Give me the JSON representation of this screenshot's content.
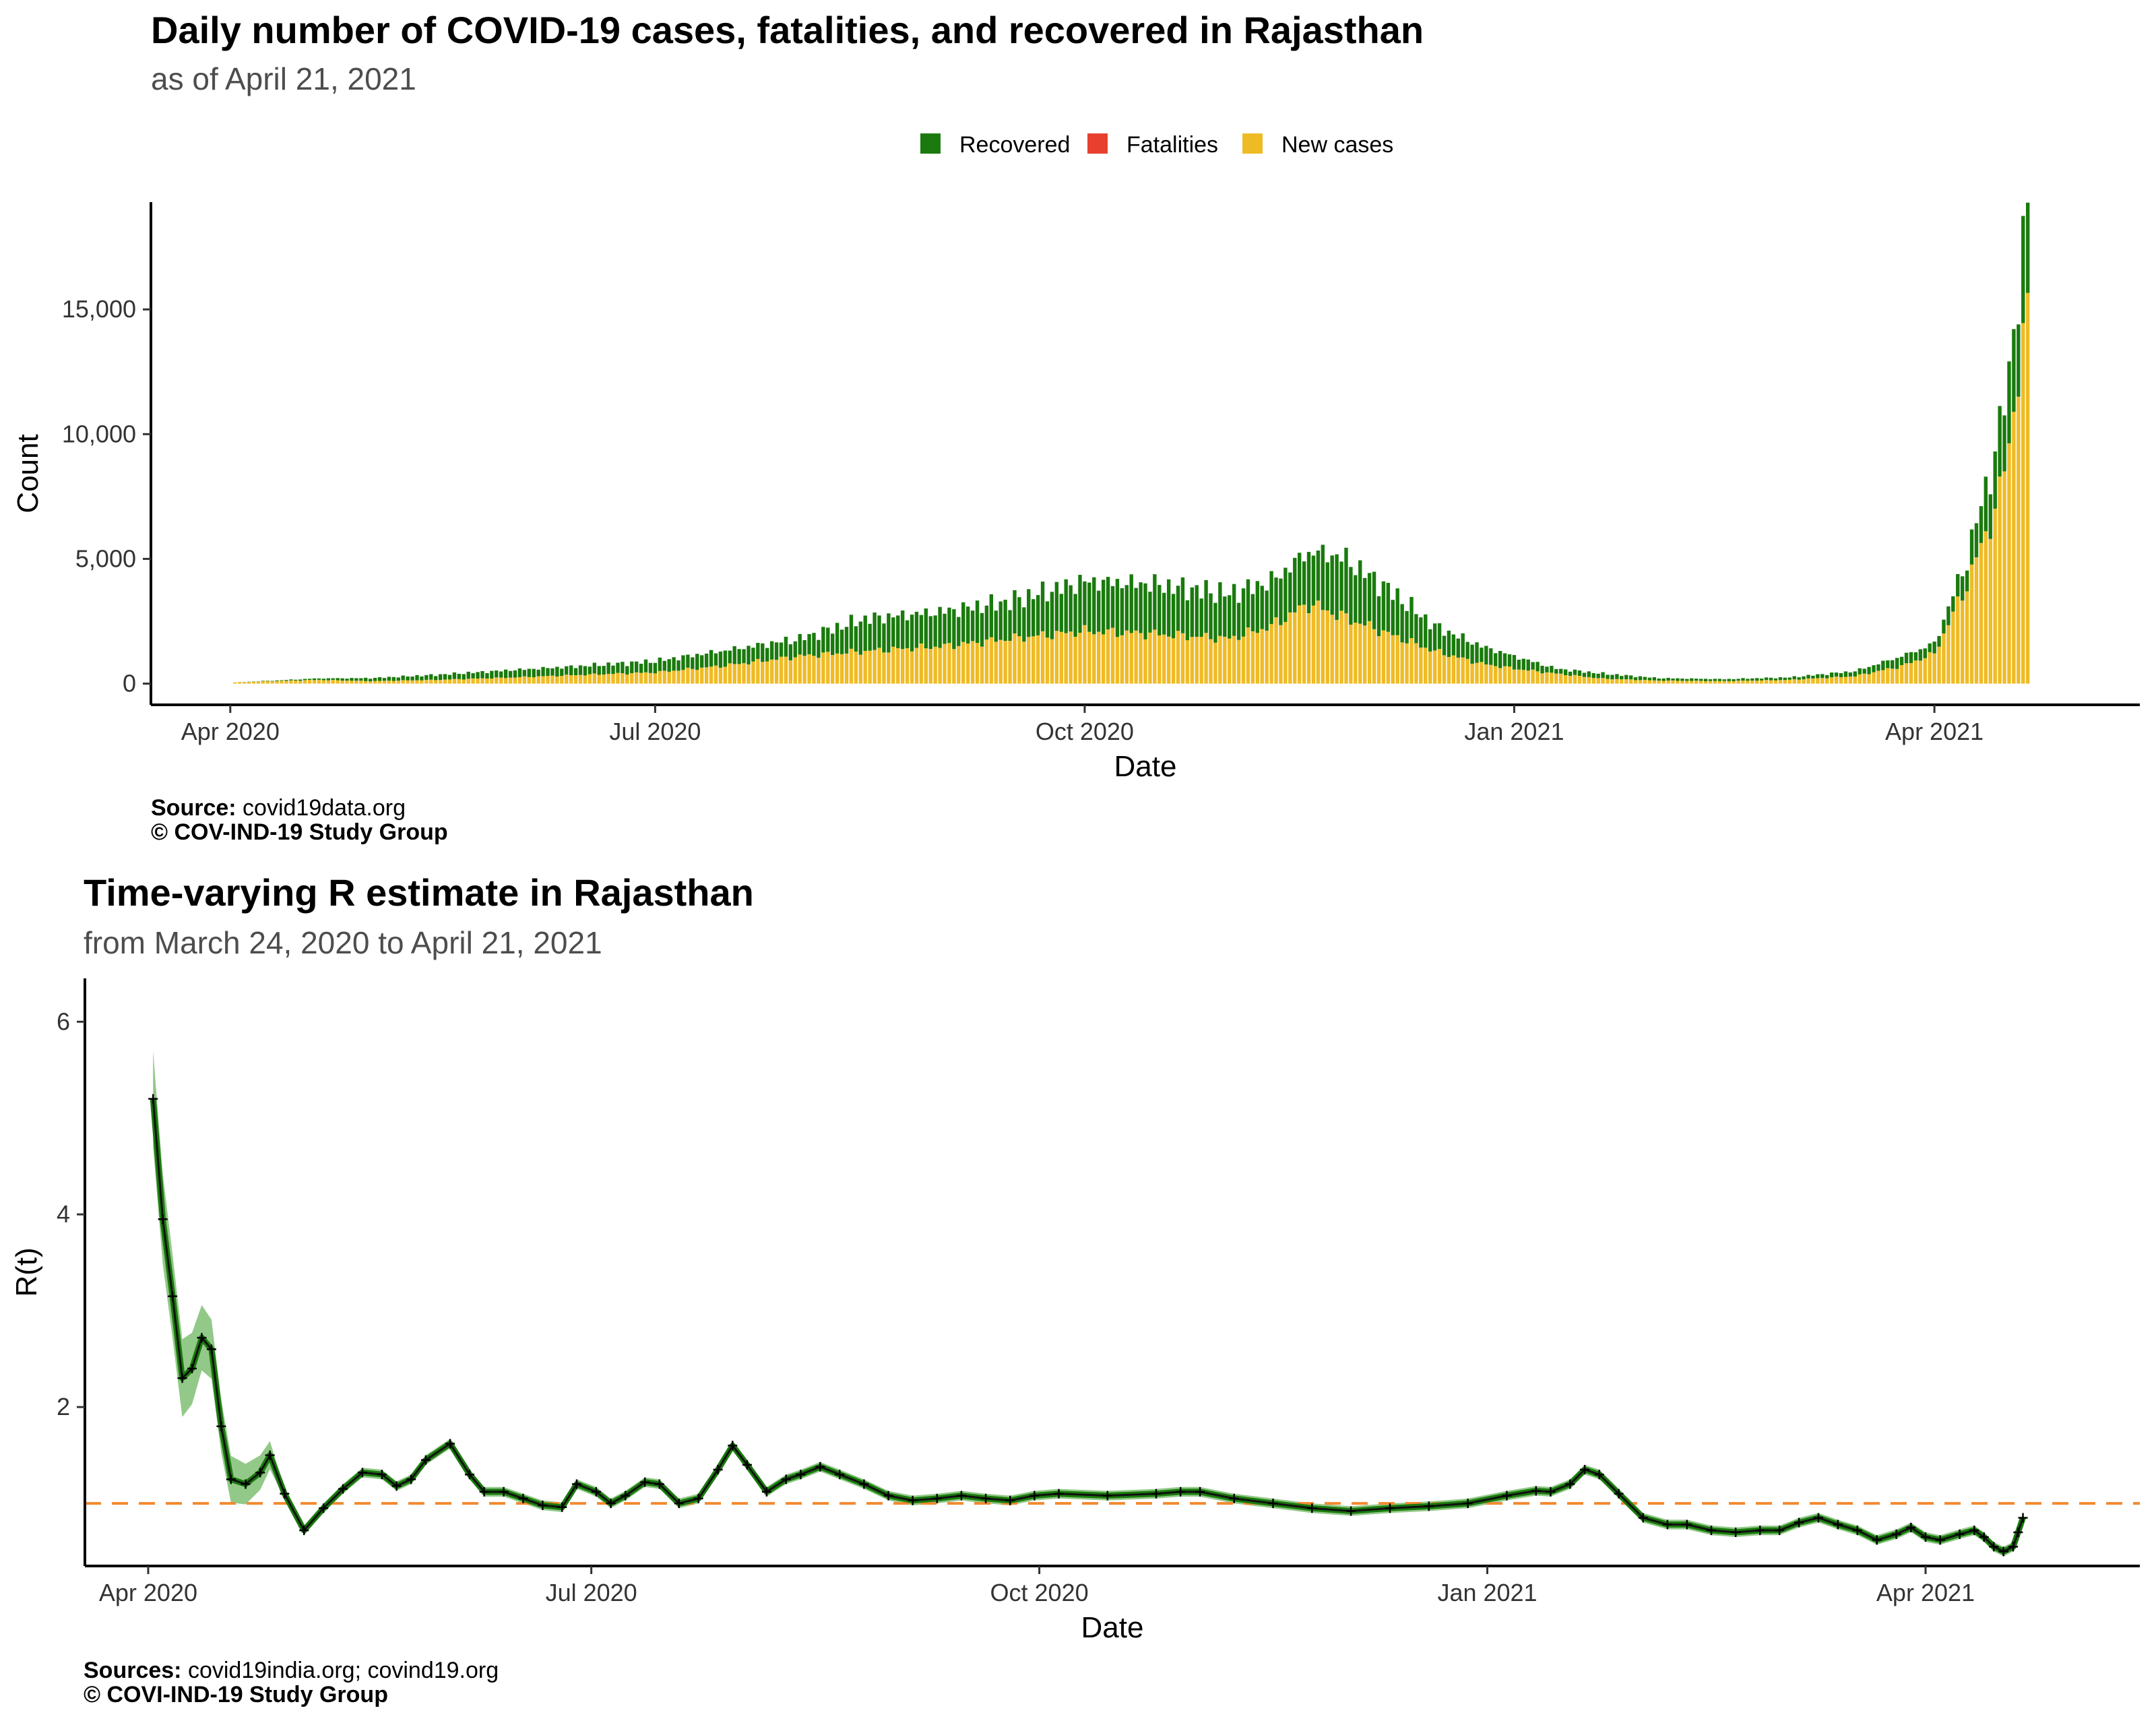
{
  "chart1": {
    "title": "Daily number of COVID-19 cases, fatalities, and recovered in Rajasthan",
    "subtitle": "as of April 21, 2021",
    "source_label": "Source:",
    "source_text": "covid19data.org",
    "copyright": "© COV-IND-19 Study Group"
  },
  "chart2": {
    "title": "Time-varying R estimate in Rajasthan",
    "subtitle": "from March 24, 2020 to April 21, 2021",
    "source_label": "Sources:",
    "source_text": "covid19india.org; covind19.org",
    "copyright": "© COVI-IND-19 Study Group"
  },
  "colors": {
    "recovered": "#1a7a0d",
    "fatalities": "#e8402f",
    "new_cases": "#efbb25",
    "r_line": "#1a7a0d",
    "r_band": "#7fbf73",
    "threshold": "#f28a30"
  },
  "chart_data": [
    {
      "type": "bar",
      "stacked": true,
      "title": "Daily number of COVID-19 cases, fatalities, and recovered in Rajasthan",
      "subtitle": "as of April 21, 2021",
      "xlabel": "Date",
      "ylabel": "Count",
      "legend": {
        "position": "top",
        "entries": [
          "Recovered",
          "Fatalities",
          "New cases"
        ]
      },
      "x_range": [
        "2020-03-15",
        "2021-05-15"
      ],
      "ylim": [
        -850,
        19300
      ],
      "x_ticks": [
        {
          "date": "2020-04-01",
          "label": "Apr 2020"
        },
        {
          "date": "2020-07-01",
          "label": "Jul 2020"
        },
        {
          "date": "2020-10-01",
          "label": "Oct 2020"
        },
        {
          "date": "2021-01-01",
          "label": "Jan 2021"
        },
        {
          "date": "2021-04-01",
          "label": "Apr 2021"
        }
      ],
      "y_ticks": [
        {
          "value": 0,
          "label": "0"
        },
        {
          "value": 5000,
          "label": "5,000"
        },
        {
          "value": 10000,
          "label": "10,000"
        },
        {
          "value": 15000,
          "label": "15,000"
        }
      ],
      "new_cases_profile": [
        [
          "2020-04-02",
          50
        ],
        [
          "2020-04-10",
          100
        ],
        [
          "2020-04-20",
          150
        ],
        [
          "2020-05-01",
          100
        ],
        [
          "2020-05-15",
          150
        ],
        [
          "2020-06-01",
          250
        ],
        [
          "2020-06-15",
          350
        ],
        [
          "2020-07-01",
          450
        ],
        [
          "2020-07-15",
          700
        ],
        [
          "2020-08-01",
          1100
        ],
        [
          "2020-08-15",
          1300
        ],
        [
          "2020-09-01",
          1500
        ],
        [
          "2020-09-15",
          1800
        ],
        [
          "2020-10-01",
          2100
        ],
        [
          "2020-10-15",
          2000
        ],
        [
          "2020-11-01",
          1800
        ],
        [
          "2020-11-10",
          2300
        ],
        [
          "2020-11-18",
          3200
        ],
        [
          "2020-11-25",
          2700
        ],
        [
          "2020-12-05",
          2000
        ],
        [
          "2020-12-15",
          1300
        ],
        [
          "2020-12-25",
          800
        ],
        [
          "2021-01-01",
          600
        ],
        [
          "2021-01-10",
          400
        ],
        [
          "2021-01-20",
          200
        ],
        [
          "2021-02-01",
          120
        ],
        [
          "2021-02-15",
          100
        ],
        [
          "2021-03-01",
          150
        ],
        [
          "2021-03-15",
          300
        ],
        [
          "2021-03-25",
          700
        ],
        [
          "2021-04-01",
          1200
        ],
        [
          "2021-04-08",
          4000
        ],
        [
          "2021-04-15",
          7500
        ],
        [
          "2021-04-21",
          14600
        ]
      ],
      "recovered_profile": [
        [
          "2020-04-02",
          0
        ],
        [
          "2020-04-10",
          20
        ],
        [
          "2020-04-20",
          60
        ],
        [
          "2020-05-01",
          120
        ],
        [
          "2020-05-15",
          200
        ],
        [
          "2020-06-01",
          300
        ],
        [
          "2020-06-15",
          350
        ],
        [
          "2020-07-01",
          450
        ],
        [
          "2020-07-15",
          600
        ],
        [
          "2020-08-01",
          700
        ],
        [
          "2020-08-15",
          1300
        ],
        [
          "2020-09-01",
          1400
        ],
        [
          "2020-09-15",
          1500
        ],
        [
          "2020-10-01",
          2000
        ],
        [
          "2020-10-15",
          2000
        ],
        [
          "2020-11-01",
          1800
        ],
        [
          "2020-11-10",
          1800
        ],
        [
          "2020-11-18",
          2100
        ],
        [
          "2020-11-25",
          2400
        ],
        [
          "2020-12-05",
          1800
        ],
        [
          "2020-12-15",
          1000
        ],
        [
          "2020-12-25",
          700
        ],
        [
          "2021-01-01",
          500
        ],
        [
          "2021-01-10",
          200
        ],
        [
          "2021-01-20",
          200
        ],
        [
          "2021-02-01",
          100
        ],
        [
          "2021-02-15",
          80
        ],
        [
          "2021-03-01",
          100
        ],
        [
          "2021-03-15",
          200
        ],
        [
          "2021-03-25",
          400
        ],
        [
          "2021-04-01",
          400
        ],
        [
          "2021-04-08",
          1000
        ],
        [
          "2021-04-15",
          2500
        ],
        [
          "2021-04-21",
          3900
        ]
      ]
    },
    {
      "type": "line",
      "title": "Time-varying R estimate in Rajasthan",
      "subtitle": "from March 24, 2020 to April 21, 2021",
      "xlabel": "Date",
      "ylabel": "R(t)",
      "x_range": [
        "2020-03-19",
        "2021-05-15"
      ],
      "ylim": [
        0.35,
        6.45
      ],
      "threshold": 1,
      "x_ticks": [
        {
          "date": "2020-04-01",
          "label": "Apr 2020"
        },
        {
          "date": "2020-07-01",
          "label": "Jul 2020"
        },
        {
          "date": "2020-10-01",
          "label": "Oct 2020"
        },
        {
          "date": "2021-01-01",
          "label": "Jan 2021"
        },
        {
          "date": "2021-04-01",
          "label": "Apr 2021"
        }
      ],
      "y_ticks": [
        {
          "value": 2,
          "label": "2"
        },
        {
          "value": 4,
          "label": "4"
        },
        {
          "value": 6,
          "label": "6"
        }
      ],
      "series": [
        {
          "points": [
            [
              "2020-04-02",
              5.2
            ],
            [
              "2020-04-04",
              3.95
            ],
            [
              "2020-04-06",
              3.15
            ],
            [
              "2020-04-08",
              2.3
            ],
            [
              "2020-04-10",
              2.4
            ],
            [
              "2020-04-12",
              2.72
            ],
            [
              "2020-04-14",
              2.6
            ],
            [
              "2020-04-16",
              1.8
            ],
            [
              "2020-04-18",
              1.25
            ],
            [
              "2020-04-21",
              1.2
            ],
            [
              "2020-04-24",
              1.32
            ],
            [
              "2020-04-26",
              1.5
            ],
            [
              "2020-04-29",
              1.1
            ],
            [
              "2020-05-03",
              0.72
            ],
            [
              "2020-05-07",
              0.95
            ],
            [
              "2020-05-11",
              1.15
            ],
            [
              "2020-05-15",
              1.32
            ],
            [
              "2020-05-19",
              1.3
            ],
            [
              "2020-05-22",
              1.18
            ],
            [
              "2020-05-25",
              1.25
            ],
            [
              "2020-05-28",
              1.45
            ],
            [
              "2020-06-02",
              1.62
            ],
            [
              "2020-06-06",
              1.3
            ],
            [
              "2020-06-09",
              1.12
            ],
            [
              "2020-06-13",
              1.12
            ],
            [
              "2020-06-17",
              1.05
            ],
            [
              "2020-06-21",
              0.98
            ],
            [
              "2020-06-25",
              0.96
            ],
            [
              "2020-06-28",
              1.2
            ],
            [
              "2020-07-02",
              1.12
            ],
            [
              "2020-07-05",
              1.0
            ],
            [
              "2020-07-08",
              1.08
            ],
            [
              "2020-07-12",
              1.22
            ],
            [
              "2020-07-15",
              1.2
            ],
            [
              "2020-07-19",
              1.0
            ],
            [
              "2020-07-23",
              1.05
            ],
            [
              "2020-07-27",
              1.35
            ],
            [
              "2020-07-30",
              1.6
            ],
            [
              "2020-08-02",
              1.4
            ],
            [
              "2020-08-06",
              1.12
            ],
            [
              "2020-08-10",
              1.25
            ],
            [
              "2020-08-13",
              1.3
            ],
            [
              "2020-08-17",
              1.38
            ],
            [
              "2020-08-21",
              1.3
            ],
            [
              "2020-08-26",
              1.2
            ],
            [
              "2020-08-31",
              1.08
            ],
            [
              "2020-09-05",
              1.03
            ],
            [
              "2020-09-10",
              1.05
            ],
            [
              "2020-09-15",
              1.08
            ],
            [
              "2020-09-20",
              1.05
            ],
            [
              "2020-09-25",
              1.03
            ],
            [
              "2020-09-30",
              1.08
            ],
            [
              "2020-10-05",
              1.1
            ],
            [
              "2020-10-15",
              1.08
            ],
            [
              "2020-10-25",
              1.1
            ],
            [
              "2020-10-30",
              1.12
            ],
            [
              "2020-11-03",
              1.12
            ],
            [
              "2020-11-10",
              1.05
            ],
            [
              "2020-11-18",
              1.0
            ],
            [
              "2020-11-26",
              0.95
            ],
            [
              "2020-12-04",
              0.92
            ],
            [
              "2020-12-12",
              0.95
            ],
            [
              "2020-12-20",
              0.97
            ],
            [
              "2020-12-28",
              1.0
            ],
            [
              "2021-01-05",
              1.08
            ],
            [
              "2021-01-11",
              1.13
            ],
            [
              "2021-01-14",
              1.12
            ],
            [
              "2021-01-18",
              1.2
            ],
            [
              "2021-01-21",
              1.35
            ],
            [
              "2021-01-24",
              1.3
            ],
            [
              "2021-01-28",
              1.1
            ],
            [
              "2021-02-02",
              0.85
            ],
            [
              "2021-02-07",
              0.78
            ],
            [
              "2021-02-11",
              0.78
            ],
            [
              "2021-02-16",
              0.72
            ],
            [
              "2021-02-21",
              0.7
            ],
            [
              "2021-02-26",
              0.72
            ],
            [
              "2021-03-02",
              0.72
            ],
            [
              "2021-03-06",
              0.8
            ],
            [
              "2021-03-10",
              0.85
            ],
            [
              "2021-03-14",
              0.78
            ],
            [
              "2021-03-18",
              0.72
            ],
            [
              "2021-03-22",
              0.62
            ],
            [
              "2021-03-26",
              0.68
            ],
            [
              "2021-03-29",
              0.75
            ],
            [
              "2021-04-01",
              0.65
            ],
            [
              "2021-04-04",
              0.62
            ],
            [
              "2021-04-08",
              0.68
            ],
            [
              "2021-04-11",
              0.72
            ],
            [
              "2021-04-13",
              0.65
            ],
            [
              "2021-04-15",
              0.55
            ],
            [
              "2021-04-17",
              0.5
            ],
            [
              "2021-04-19",
              0.55
            ],
            [
              "2021-04-20",
              0.7
            ],
            [
              "2021-04-21",
              0.85
            ]
          ]
        }
      ]
    }
  ]
}
